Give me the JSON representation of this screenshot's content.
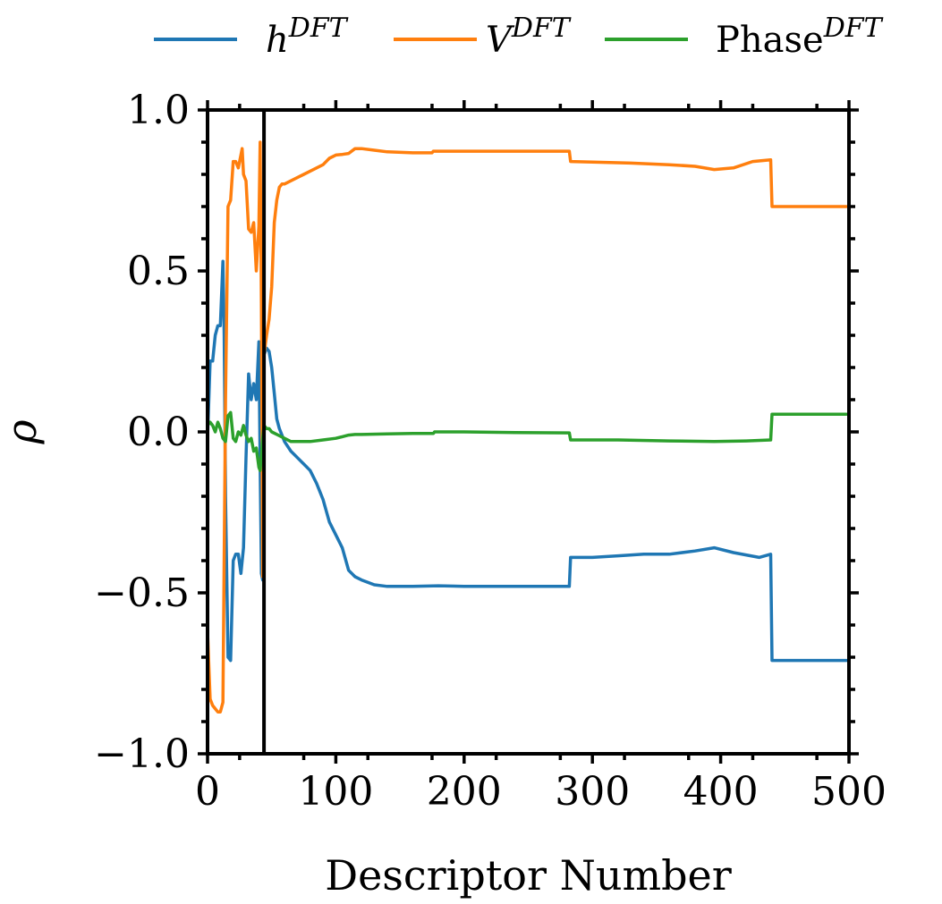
{
  "chart_data": {
    "type": "line",
    "xlabel": "Descriptor Number",
    "ylabel": "ρ",
    "xlim": [
      0,
      500
    ],
    "ylim": [
      -1.0,
      1.0
    ],
    "xticks": [
      0,
      100,
      200,
      300,
      400,
      500
    ],
    "xtick_labels": [
      "0",
      "100",
      "200",
      "300",
      "400",
      "500"
    ],
    "yticks": [
      -1.0,
      -0.5,
      0.0,
      0.5,
      1.0
    ],
    "ytick_labels": [
      "−1.0",
      "−0.5",
      "0.0",
      "0.5",
      "1.0"
    ],
    "grid": false,
    "legend_position": "top-center",
    "vline_x": 44,
    "series": [
      {
        "name_base": "h",
        "name_sup": "DFT",
        "color": "#1f77b4",
        "x": [
          0,
          2,
          4,
          6,
          8,
          10,
          12,
          13,
          14,
          16,
          18,
          20,
          22,
          24,
          26,
          28,
          30,
          32,
          34,
          36,
          38,
          40,
          41,
          42,
          43,
          44,
          46,
          48,
          50,
          52,
          54,
          56,
          58,
          60,
          65,
          70,
          75,
          80,
          85,
          90,
          95,
          100,
          105,
          110,
          115,
          120,
          130,
          140,
          160,
          180,
          200,
          220,
          240,
          260,
          282,
          283,
          300,
          320,
          340,
          360,
          380,
          395,
          410,
          430,
          439,
          440,
          460,
          480,
          498
        ],
        "y": [
          -0.02,
          0.22,
          0.22,
          0.3,
          0.33,
          0.33,
          0.53,
          0.3,
          -0.2,
          -0.7,
          -0.71,
          -0.4,
          -0.38,
          -0.38,
          -0.44,
          -0.36,
          -0.08,
          0.18,
          0.1,
          0.15,
          0.1,
          0.28,
          -0.1,
          -0.44,
          -0.46,
          0.24,
          0.26,
          0.25,
          0.2,
          0.12,
          0.04,
          0.01,
          -0.01,
          -0.03,
          -0.06,
          -0.08,
          -0.1,
          -0.12,
          -0.16,
          -0.21,
          -0.28,
          -0.32,
          -0.36,
          -0.43,
          -0.45,
          -0.46,
          -0.475,
          -0.48,
          -0.48,
          -0.478,
          -0.48,
          -0.48,
          -0.48,
          -0.48,
          -0.48,
          -0.39,
          -0.39,
          -0.385,
          -0.38,
          -0.38,
          -0.37,
          -0.36,
          -0.375,
          -0.39,
          -0.38,
          -0.71,
          -0.71,
          -0.71,
          -0.71
        ]
      },
      {
        "name_base": "V",
        "name_sup": "DFT",
        "color": "#ff7f0e",
        "x": [
          0,
          2,
          4,
          6,
          8,
          10,
          12,
          14,
          16,
          18,
          20,
          22,
          24,
          26,
          27,
          28,
          30,
          32,
          34,
          36,
          38,
          40,
          41,
          42,
          43,
          44,
          46,
          48,
          50,
          52,
          54,
          56,
          58,
          60,
          65,
          70,
          75,
          80,
          85,
          90,
          95,
          100,
          105,
          110,
          115,
          120,
          130,
          140,
          160,
          175,
          176,
          200,
          230,
          260,
          282,
          283,
          300,
          330,
          360,
          380,
          395,
          410,
          425,
          439,
          440,
          460,
          480,
          498
        ],
        "y": [
          -0.62,
          -0.83,
          -0.85,
          -0.86,
          -0.87,
          -0.87,
          -0.84,
          0.1,
          0.7,
          0.72,
          0.84,
          0.84,
          0.82,
          0.86,
          0.88,
          0.8,
          0.78,
          0.63,
          0.62,
          0.65,
          0.5,
          0.64,
          0.9,
          0.4,
          -0.45,
          0.24,
          0.3,
          0.35,
          0.45,
          0.65,
          0.72,
          0.76,
          0.77,
          0.77,
          0.78,
          0.79,
          0.8,
          0.81,
          0.82,
          0.83,
          0.85,
          0.86,
          0.862,
          0.865,
          0.88,
          0.88,
          0.875,
          0.87,
          0.867,
          0.867,
          0.872,
          0.872,
          0.872,
          0.872,
          0.872,
          0.84,
          0.838,
          0.835,
          0.83,
          0.825,
          0.815,
          0.82,
          0.84,
          0.845,
          0.7,
          0.7,
          0.7,
          0.7
        ]
      },
      {
        "name_base": "Phase",
        "name_sup": "DFT",
        "color": "#2ca02c",
        "x": [
          0,
          2,
          4,
          6,
          8,
          10,
          12,
          14,
          16,
          18,
          20,
          22,
          24,
          26,
          28,
          30,
          32,
          34,
          36,
          38,
          40,
          41,
          42,
          43,
          44,
          46,
          48,
          50,
          55,
          60,
          65,
          70,
          80,
          90,
          100,
          105,
          110,
          115,
          120,
          140,
          160,
          176,
          177,
          200,
          240,
          282,
          283,
          320,
          360,
          395,
          420,
          439,
          440,
          460,
          480,
          498
        ],
        "y": [
          0.02,
          0.03,
          0.02,
          0.0,
          0.03,
          0.01,
          -0.02,
          -0.03,
          0.05,
          0.06,
          -0.02,
          -0.03,
          0.0,
          -0.01,
          0.02,
          -0.01,
          -0.03,
          -0.02,
          -0.06,
          -0.05,
          -0.11,
          -0.12,
          -0.07,
          -0.02,
          0.02,
          0.01,
          0.01,
          0.0,
          -0.01,
          -0.02,
          -0.03,
          -0.03,
          -0.03,
          -0.025,
          -0.02,
          -0.015,
          -0.01,
          -0.008,
          -0.008,
          -0.006,
          -0.005,
          -0.005,
          0.0,
          0.0,
          -0.002,
          -0.003,
          -0.025,
          -0.025,
          -0.028,
          -0.03,
          -0.028,
          -0.025,
          0.055,
          0.055,
          0.055,
          0.055
        ]
      }
    ]
  }
}
